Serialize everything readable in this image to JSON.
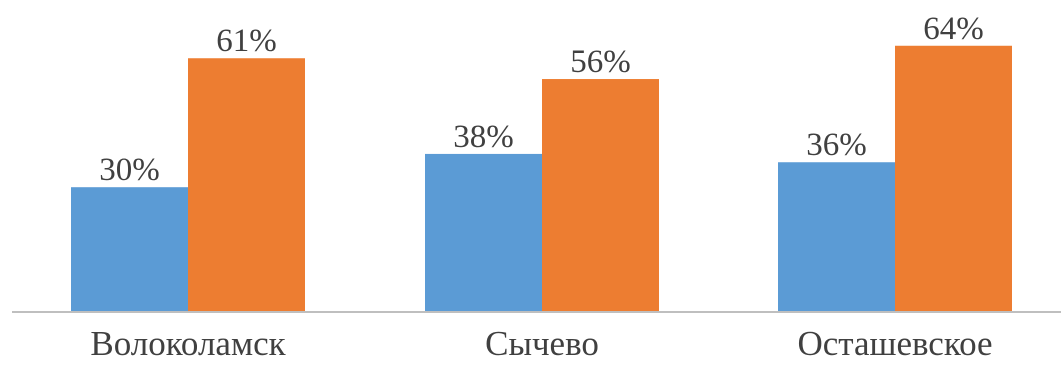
{
  "chart_data": {
    "type": "bar",
    "categories": [
      "Волоколамск",
      "Сычево",
      "Осташевское"
    ],
    "series": [
      {
        "values": [
          30,
          38,
          36
        ],
        "labels": [
          "30%",
          "38%",
          "36%"
        ],
        "color": "#5B9BD5"
      },
      {
        "values": [
          61,
          56,
          64
        ],
        "labels": [
          "61%",
          "56%",
          "64%"
        ],
        "color": "#ED7D31"
      }
    ],
    "unit": "%",
    "title": "",
    "xlabel": "",
    "ylabel": "",
    "ylim": [
      0,
      70
    ],
    "grid": false,
    "legend": "none",
    "axis_color": "#BFBFBF",
    "label_color": "#404040"
  }
}
